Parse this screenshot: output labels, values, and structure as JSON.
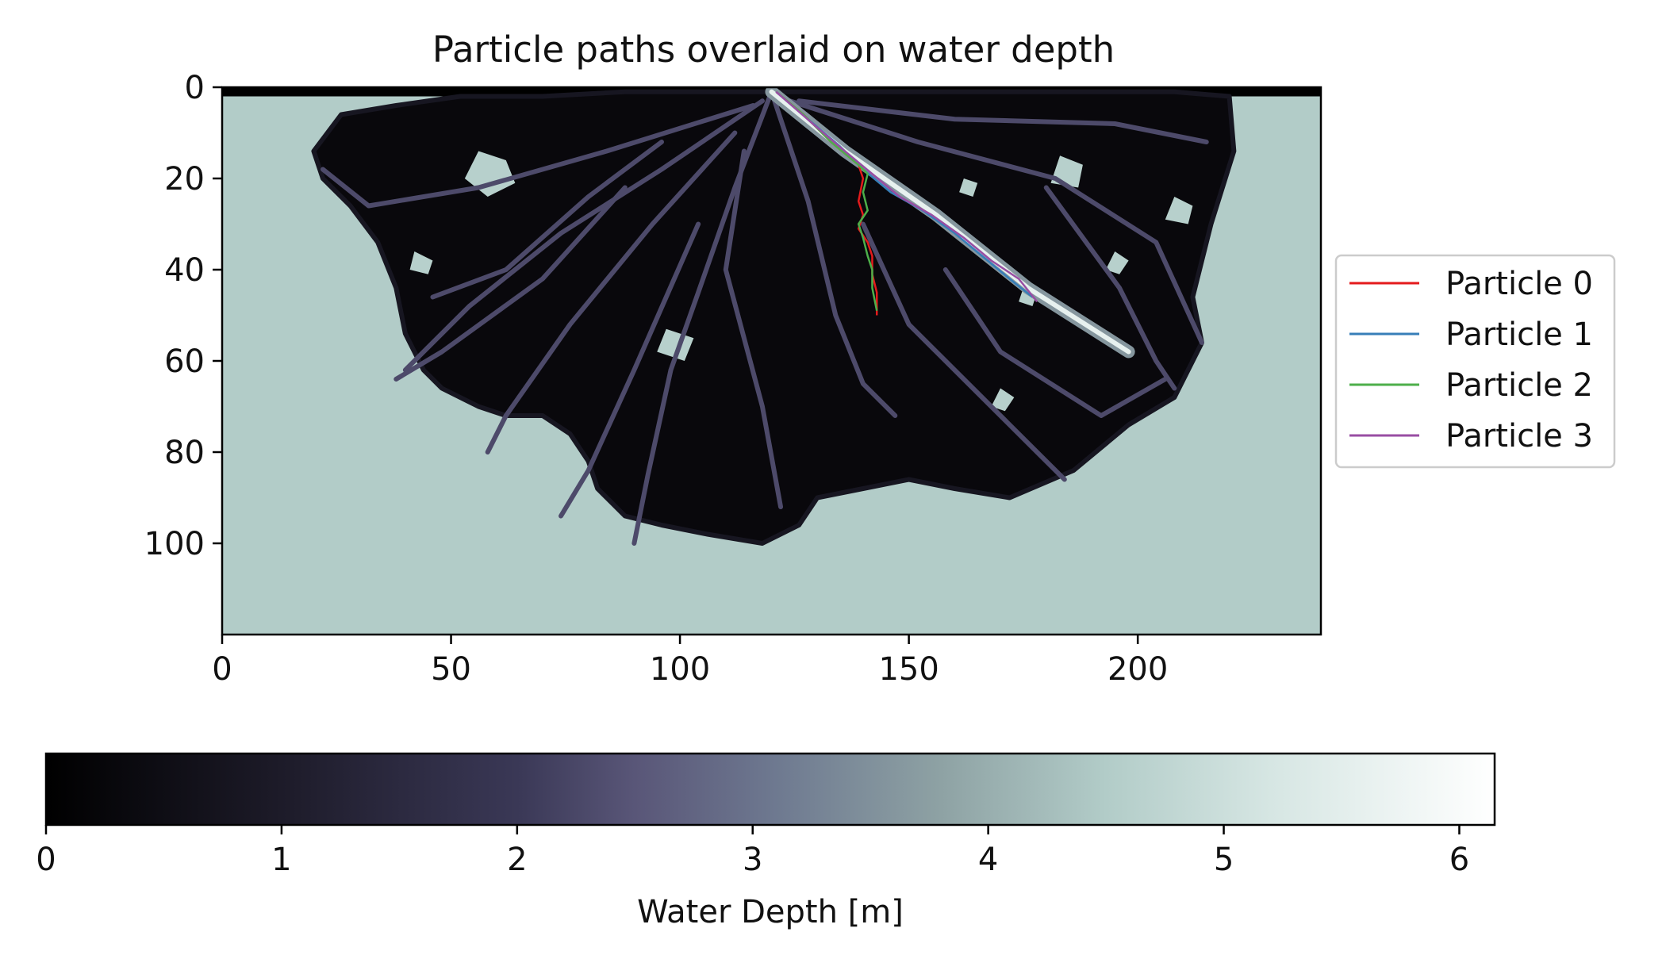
{
  "chart_data": {
    "type": "heatmap",
    "title": "Particle paths overlaid on water depth",
    "image": {
      "x_range": [
        0,
        240
      ],
      "y_range": [
        0,
        120
      ],
      "y_inverted": true,
      "background_value": 4.5,
      "x_ticks": [
        0,
        50,
        100,
        150,
        200
      ],
      "y_ticks": [
        0,
        20,
        40,
        60,
        80,
        100
      ],
      "channel_paths": [
        [
          [
            120,
            1
          ],
          [
            112,
            22
          ],
          [
            104,
            45
          ],
          [
            98,
            62
          ],
          [
            93,
            85
          ],
          [
            90,
            100
          ]
        ],
        [
          [
            120,
            1
          ],
          [
            128,
            25
          ],
          [
            134,
            50
          ],
          [
            140,
            65
          ],
          [
            147,
            72
          ]
        ],
        [
          [
            118,
            3
          ],
          [
            96,
            18
          ],
          [
            74,
            32
          ],
          [
            54,
            48
          ],
          [
            40,
            62
          ]
        ],
        [
          [
            116,
            4
          ],
          [
            84,
            14
          ],
          [
            56,
            22
          ],
          [
            32,
            26
          ],
          [
            22,
            18
          ]
        ],
        [
          [
            124,
            3
          ],
          [
            152,
            12
          ],
          [
            182,
            20
          ],
          [
            204,
            34
          ],
          [
            214,
            56
          ]
        ],
        [
          [
            126,
            3
          ],
          [
            160,
            7
          ],
          [
            195,
            8
          ],
          [
            215,
            12
          ]
        ],
        [
          [
            112,
            10
          ],
          [
            94,
            30
          ],
          [
            76,
            52
          ],
          [
            62,
            72
          ],
          [
            58,
            80
          ]
        ],
        [
          [
            114,
            14
          ],
          [
            110,
            40
          ],
          [
            118,
            70
          ],
          [
            122,
            92
          ]
        ],
        [
          [
            140,
            30
          ],
          [
            150,
            52
          ],
          [
            168,
            70
          ],
          [
            184,
            86
          ]
        ],
        [
          [
            158,
            40
          ],
          [
            170,
            58
          ],
          [
            192,
            72
          ],
          [
            206,
            64
          ]
        ],
        [
          [
            88,
            22
          ],
          [
            70,
            42
          ],
          [
            48,
            58
          ],
          [
            38,
            64
          ]
        ],
        [
          [
            104,
            30
          ],
          [
            90,
            62
          ],
          [
            80,
            84
          ],
          [
            74,
            94
          ]
        ],
        [
          [
            180,
            22
          ],
          [
            196,
            44
          ],
          [
            204,
            60
          ],
          [
            208,
            66
          ]
        ],
        [
          [
            96,
            12
          ],
          [
            80,
            24
          ],
          [
            62,
            40
          ],
          [
            46,
            46
          ]
        ]
      ],
      "main_channel": [
        [
          120,
          1
        ],
        [
          136,
          14
        ],
        [
          156,
          28
        ],
        [
          176,
          44
        ],
        [
          198,
          58
        ]
      ],
      "islands": [
        [
          [
            56,
            14
          ],
          [
            62,
            16
          ],
          [
            64,
            21
          ],
          [
            58,
            24
          ],
          [
            53,
            20
          ]
        ],
        [
          [
            42,
            36
          ],
          [
            46,
            38
          ],
          [
            45,
            41
          ],
          [
            41,
            40
          ]
        ],
        [
          [
            97,
            53
          ],
          [
            103,
            55
          ],
          [
            101,
            60
          ],
          [
            95,
            58
          ]
        ],
        [
          [
            183,
            15
          ],
          [
            188,
            17
          ],
          [
            187,
            22
          ],
          [
            181,
            21
          ]
        ],
        [
          [
            175,
            44
          ],
          [
            178,
            45
          ],
          [
            177,
            48
          ],
          [
            174,
            47
          ]
        ],
        [
          [
            195,
            36
          ],
          [
            198,
            38
          ],
          [
            196,
            41
          ],
          [
            193,
            40
          ]
        ],
        [
          [
            162,
            20
          ],
          [
            165,
            21
          ],
          [
            164,
            24
          ],
          [
            161,
            23
          ]
        ],
        [
          [
            208,
            24
          ],
          [
            212,
            26
          ],
          [
            211,
            30
          ],
          [
            206,
            29
          ]
        ],
        [
          [
            170,
            66
          ],
          [
            173,
            68
          ],
          [
            171,
            71
          ],
          [
            168,
            70
          ]
        ]
      ],
      "delta_outline": [
        [
          20,
          14
        ],
        [
          26,
          6
        ],
        [
          38,
          4
        ],
        [
          52,
          2
        ],
        [
          70,
          2
        ],
        [
          88,
          1
        ],
        [
          104,
          1
        ],
        [
          120,
          1
        ],
        [
          136,
          1
        ],
        [
          154,
          1
        ],
        [
          172,
          1
        ],
        [
          190,
          1
        ],
        [
          208,
          1
        ],
        [
          220,
          2
        ],
        [
          221,
          14
        ],
        [
          216,
          30
        ],
        [
          212,
          46
        ],
        [
          214,
          56
        ],
        [
          208,
          68
        ],
        [
          198,
          74
        ],
        [
          186,
          84
        ],
        [
          172,
          90
        ],
        [
          160,
          88
        ],
        [
          150,
          86
        ],
        [
          140,
          88
        ],
        [
          130,
          90
        ],
        [
          126,
          96
        ],
        [
          118,
          100
        ],
        [
          106,
          98
        ],
        [
          96,
          96
        ],
        [
          88,
          94
        ],
        [
          82,
          88
        ],
        [
          80,
          82
        ],
        [
          76,
          76
        ],
        [
          70,
          72
        ],
        [
          62,
          72
        ],
        [
          56,
          70
        ],
        [
          48,
          66
        ],
        [
          44,
          62
        ],
        [
          40,
          54
        ],
        [
          38,
          44
        ],
        [
          34,
          34
        ],
        [
          28,
          26
        ],
        [
          22,
          20
        ]
      ]
    },
    "series": [
      {
        "name": "Particle 0",
        "color": "#e41a1c",
        "x": [
          121,
          127,
          133,
          139,
          140,
          139,
          140,
          139,
          141,
          142,
          142,
          143,
          143
        ],
        "y": [
          1,
          6,
          12,
          17,
          20,
          25,
          28,
          31,
          34,
          37,
          41,
          45,
          50
        ]
      },
      {
        "name": "Particle 1",
        "color": "#377eb8",
        "x": [
          121,
          128,
          135,
          140,
          146,
          153,
          160,
          166,
          172,
          177
        ],
        "y": [
          1,
          7,
          13,
          18,
          23,
          27,
          32,
          37,
          42,
          46
        ]
      },
      {
        "name": "Particle 2",
        "color": "#4daf4a",
        "x": [
          121,
          127,
          133,
          139,
          141,
          140,
          141,
          139,
          140,
          141,
          142,
          142,
          143
        ],
        "y": [
          1,
          6,
          12,
          17,
          19,
          23,
          27,
          30,
          33,
          37,
          40,
          44,
          49
        ]
      },
      {
        "name": "Particle 3",
        "color": "#984ea3",
        "x": [
          121,
          129,
          136,
          142,
          148,
          155,
          162,
          168,
          174,
          178
        ],
        "y": [
          1,
          8,
          14,
          19,
          24,
          28,
          33,
          38,
          42,
          47
        ]
      }
    ],
    "colorbar": {
      "label": "Water Depth [m]",
      "range": [
        0,
        6.15
      ],
      "ticks": [
        0,
        1,
        2,
        3,
        4,
        5,
        6
      ],
      "colormap": "bone-like",
      "stops": [
        {
          "v": 0,
          "c": "#000000"
        },
        {
          "v": 1,
          "c": "#1d1b29"
        },
        {
          "v": 2,
          "c": "#3a3856"
        },
        {
          "v": 2.5,
          "c": "#595678"
        },
        {
          "v": 3.1,
          "c": "#6e7990"
        },
        {
          "v": 3.8,
          "c": "#8ea2a4"
        },
        {
          "v": 4.5,
          "c": "#b2ccc8"
        },
        {
          "v": 5.2,
          "c": "#d6e6e3"
        },
        {
          "v": 6.15,
          "c": "#ffffff"
        }
      ]
    },
    "legend": {
      "position": "outside-right"
    }
  }
}
